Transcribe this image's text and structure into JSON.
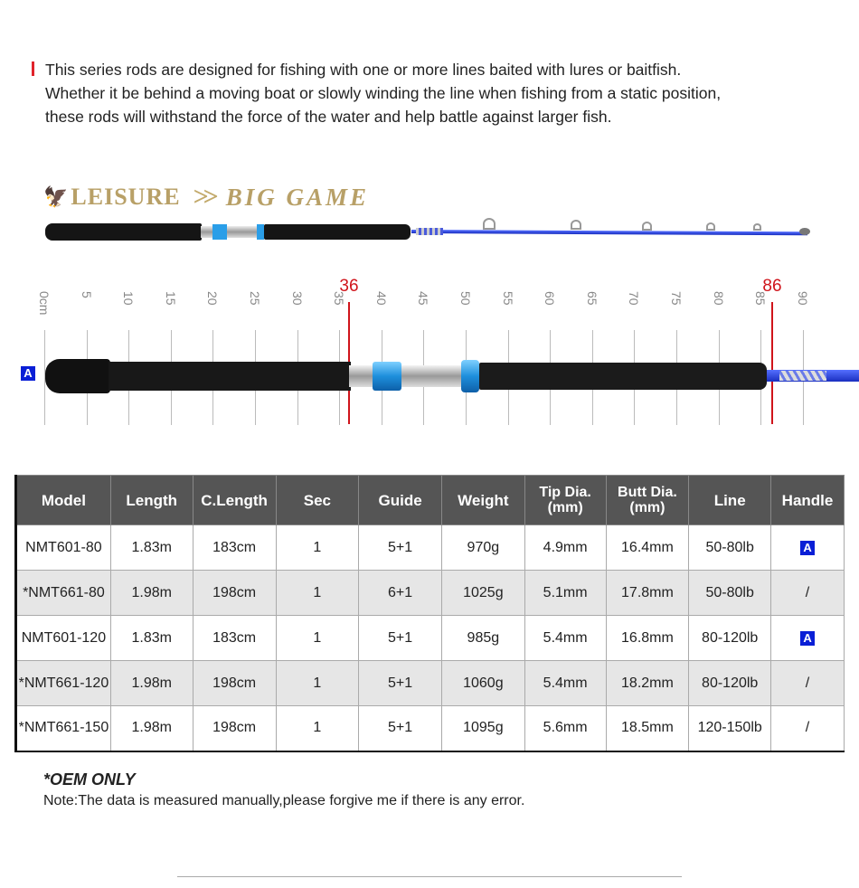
{
  "intro": [
    "This series rods are designed for fishing with one or more lines baited with lures or baitfish.",
    "Whether it be behind a moving boat or slowly winding the line when fishing from a static position,",
    "these rods will withstand the force of the water and help battle against larger fish."
  ],
  "logo": {
    "brand": "LEISURE",
    "series": "BIG GAME"
  },
  "ruler": {
    "ticks": [
      "0cm",
      "5",
      "10",
      "15",
      "20",
      "25",
      "30",
      "35",
      "40",
      "45",
      "50",
      "55",
      "60",
      "65",
      "70",
      "75",
      "80",
      "85",
      "90"
    ],
    "marks": [
      "36",
      "86"
    ],
    "handle_badge": "A"
  },
  "table": {
    "headers": [
      "Model",
      "Length",
      "C.Length",
      "Sec",
      "Guide",
      "Weight",
      "Tip Dia.\n(mm)",
      "Butt Dia.\n(mm)",
      "Line",
      "Handle"
    ],
    "rows": [
      [
        "NMT601-80",
        "1.83m",
        "183cm",
        "1",
        "5+1",
        "970g",
        "4.9mm",
        "16.4mm",
        "50-80lb",
        "A"
      ],
      [
        "*NMT661-80",
        "1.98m",
        "198cm",
        "1",
        "6+1",
        "1025g",
        "5.1mm",
        "17.8mm",
        "50-80lb",
        "/"
      ],
      [
        "NMT601-120",
        "1.83m",
        "183cm",
        "1",
        "5+1",
        "985g",
        "5.4mm",
        "16.8mm",
        "80-120lb",
        "A"
      ],
      [
        "*NMT661-120",
        "1.98m",
        "198cm",
        "1",
        "5+1",
        "1060g",
        "5.4mm",
        "18.2mm",
        "80-120lb",
        "/"
      ],
      [
        "*NMT661-150",
        "1.98m",
        "198cm",
        "1",
        "5+1",
        "1095g",
        "5.6mm",
        "18.5mm",
        "120-150lb",
        "/"
      ]
    ]
  },
  "footer": {
    "oem": "*OEM ONLY",
    "note": "Note:The data is measured manually,please forgive me if there is any error."
  },
  "colors": {
    "accent_red": "#d0141b",
    "badge_blue": "#0a1fd6",
    "header_gray": "#555555",
    "logo_gold": "#b8a067",
    "reel_seat_blue": "#2a9ee8"
  }
}
